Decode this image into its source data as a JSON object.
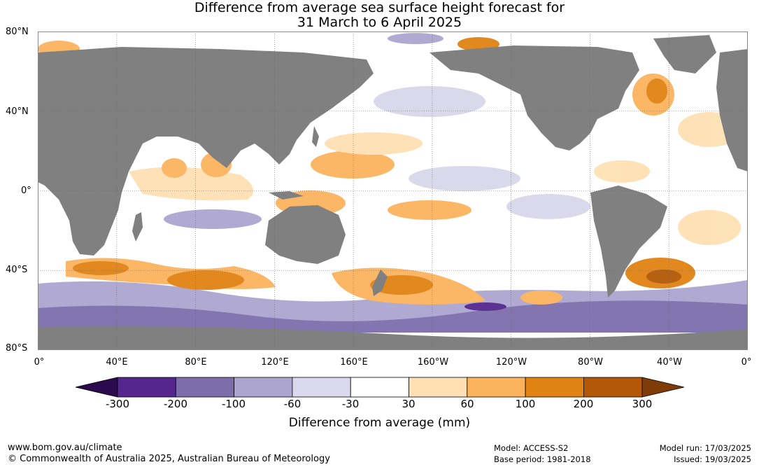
{
  "title_line1": "Difference from average sea surface height forecast for",
  "title_line2": "31 March to 6 April 2025",
  "lat_labels": [
    "80°N",
    "40°N",
    "0°",
    "40°S",
    "80°S"
  ],
  "lon_labels": [
    "0°",
    "40°E",
    "80°E",
    "120°E",
    "160°E",
    "160°W",
    "120°W",
    "80°W",
    "40°W",
    "0°"
  ],
  "legend": {
    "title": "Difference from average (mm)",
    "ticks": [
      "-300",
      "-200",
      "-100",
      "-60",
      "-30",
      "30",
      "60",
      "100",
      "200",
      "300"
    ],
    "colors": [
      "#2d0a4e",
      "#54278f",
      "#7d6eab",
      "#aca5cf",
      "#d9d8ec",
      "#ffffff",
      "#fee0b4",
      "#fbb35e",
      "#e08214",
      "#b35806",
      "#7f3b08"
    ]
  },
  "land_color": "#808080",
  "footer": {
    "url": "www.bom.gov.au/climate",
    "copyright": "© Commonwealth of Australia 2025, Australian Bureau of Meteorology",
    "model": "Model: ACCESS-S2",
    "base_period": "Base period: 1981-2018",
    "model_run": "Model run: 17/03/2025",
    "issued": "Issued: 19/03/2025"
  }
}
